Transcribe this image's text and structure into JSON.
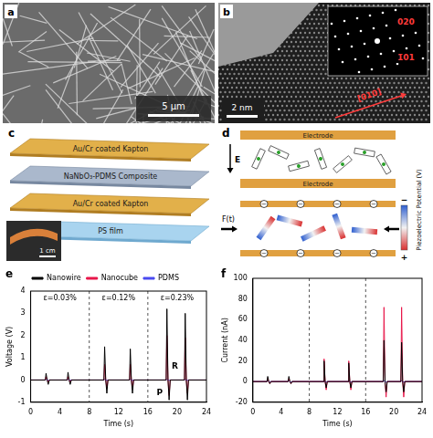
{
  "panels": {
    "a": {
      "letter": "a",
      "scale_bar": "5 µm"
    },
    "b": {
      "letter": "b",
      "scale_bar": "2 nm",
      "spots": [
        "020",
        "1̄01"
      ],
      "direction": "[010]"
    },
    "c": {
      "letter": "c",
      "layers": [
        "Au/Cr coated Kapton",
        "NaNbO₃-PDMS Composite",
        "Au/Cr coated Kapton",
        "PS film"
      ],
      "scale_bar": "1 cm"
    },
    "d": {
      "letter": "d",
      "electrode": "Electrode",
      "field": "E",
      "force": "F(t)",
      "charge": "−",
      "colorbar_title": "Piezoelectric Potential (V)",
      "colorbar_ends": [
        "−",
        "+"
      ]
    }
  },
  "chart_data": [
    {
      "panel": "e",
      "type": "line",
      "x_label": "Time (s)",
      "y_label": "Voltage (V)",
      "x": [
        0,
        2,
        2.1,
        2.25,
        2.4,
        2.55,
        5,
        5.1,
        5.25,
        5.4,
        5.55,
        10,
        10.1,
        10.25,
        10.4,
        10.55,
        13.5,
        13.6,
        13.75,
        13.9,
        14.05,
        18.5,
        18.6,
        18.75,
        18.9,
        19.05,
        21,
        21.1,
        21.25,
        21.4,
        21.55,
        24
      ],
      "series": [
        {
          "name": "Nanowire",
          "color": "#000000",
          "values": [
            0,
            0,
            0.3,
            0,
            -0.2,
            0,
            0,
            0.35,
            0,
            -0.2,
            0,
            0,
            1.5,
            0,
            -0.6,
            0,
            0,
            1.4,
            0,
            -0.6,
            0,
            0,
            3.2,
            0,
            -0.9,
            0,
            0,
            3.0,
            0,
            -0.9,
            0,
            0
          ]
        },
        {
          "name": "Nanocube",
          "color": "#e8174a",
          "values": [
            0,
            0,
            0.15,
            0,
            -0.1,
            0,
            0,
            0.15,
            0,
            -0.1,
            0,
            0,
            0.7,
            0,
            -0.4,
            0,
            0,
            0.7,
            0,
            -0.4,
            0,
            0,
            2.0,
            0,
            -0.7,
            0,
            0,
            1.9,
            0,
            -0.6,
            0,
            0
          ]
        },
        {
          "name": "PDMS",
          "color": "#4a4af0",
          "values": [
            0,
            0,
            0.03,
            0,
            -0.02,
            0,
            0,
            0.03,
            0,
            -0.02,
            0,
            0,
            0.03,
            0,
            -0.02,
            0,
            0,
            0.03,
            0,
            -0.02,
            0,
            0,
            0.03,
            0,
            -0.02,
            0,
            0,
            0.03,
            0,
            -0.02,
            0,
            0
          ]
        }
      ],
      "xlim": [
        0,
        24
      ],
      "xticks": [
        0,
        4,
        8,
        12,
        16,
        20,
        24
      ],
      "ylim": [
        -1,
        4
      ],
      "yticks": [
        -1,
        0,
        1,
        2,
        3,
        4
      ],
      "grid": false,
      "legend": "top",
      "dividers": [
        8,
        16
      ],
      "segment_labels": [
        "ε=0.03%",
        "ε=0.12%",
        "ε=0.23%"
      ],
      "annotations": [
        {
          "text": "P",
          "x": 17.6,
          "y": -0.6
        },
        {
          "text": "R",
          "x": 19.7,
          "y": 0.6
        }
      ]
    },
    {
      "panel": "f",
      "type": "line",
      "x_label": "Time (s)",
      "y_label": "Current (nA)",
      "x": [
        0,
        2,
        2.1,
        2.25,
        2.4,
        2.55,
        5,
        5.1,
        5.25,
        5.4,
        5.55,
        10,
        10.1,
        10.25,
        10.4,
        10.55,
        13.5,
        13.6,
        13.75,
        13.9,
        14.05,
        18.5,
        18.6,
        18.75,
        18.9,
        19.05,
        21,
        21.1,
        21.25,
        21.4,
        21.55,
        24
      ],
      "series": [
        {
          "color": "#000000",
          "values": [
            0,
            0,
            5,
            0,
            -2,
            0,
            0,
            5,
            0,
            -2,
            0,
            0,
            20,
            0,
            -6,
            0,
            0,
            18,
            0,
            -6,
            0,
            0,
            40,
            0,
            -10,
            0,
            0,
            38,
            0,
            -10,
            0,
            0
          ]
        },
        {
          "color": "#e8174a",
          "values": [
            0,
            0,
            3,
            0,
            -2,
            0,
            0,
            3,
            0,
            -2,
            0,
            0,
            22,
            0,
            -8,
            0,
            0,
            20,
            0,
            -8,
            0,
            0,
            72,
            0,
            -15,
            0,
            0,
            72,
            0,
            -15,
            0,
            0
          ]
        },
        {
          "color": "#4a4af0",
          "values": [
            0,
            0,
            1,
            0,
            -0.5,
            0,
            0,
            1,
            0,
            -0.5,
            0,
            0,
            1,
            0,
            -0.5,
            0,
            0,
            1,
            0,
            -0.5,
            0,
            0,
            1,
            0,
            -0.5,
            0,
            0,
            1,
            0,
            -0.5,
            0,
            0
          ]
        }
      ],
      "xlim": [
        0,
        24
      ],
      "xticks": [
        0,
        4,
        8,
        12,
        16,
        20,
        24
      ],
      "ylim": [
        -20,
        100
      ],
      "yticks": [
        -20,
        0,
        20,
        40,
        60,
        80,
        100
      ],
      "grid": false,
      "dividers": [
        8,
        16
      ]
    }
  ]
}
